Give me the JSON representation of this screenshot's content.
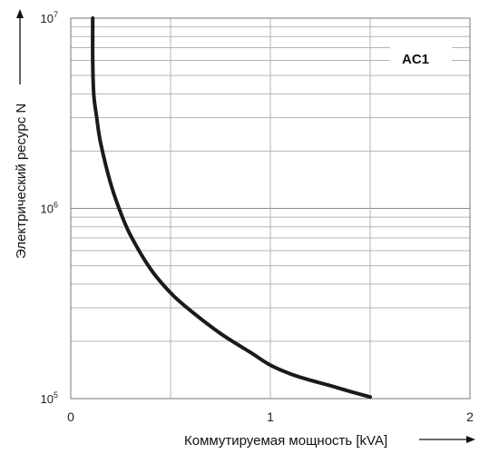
{
  "chart_data": {
    "type": "line",
    "xlabel": "Коммутируемая мощность [kVA]",
    "ylabel": "Электрический ресурс N",
    "annotation": "AC1",
    "x_scale": "linear",
    "y_scale": "log",
    "xlim": [
      0,
      2
    ],
    "ylim": [
      100000,
      10000000
    ],
    "x_ticks": [
      "0",
      "1",
      "2"
    ],
    "y_ticks": [
      {
        "base": "10",
        "exp": "5"
      },
      {
        "base": "10",
        "exp": "6"
      },
      {
        "base": "10",
        "exp": "7"
      }
    ],
    "grid": true,
    "series": [
      {
        "x": [
          0.11,
          0.11,
          0.115,
          0.13,
          0.15,
          0.2,
          0.25,
          0.3,
          0.4,
          0.5,
          0.6,
          0.75,
          0.9,
          1.0,
          1.1,
          1.2,
          1.3,
          1.4,
          1.5
        ],
        "y": [
          10000000,
          6000000,
          4000000,
          3000000,
          2200000,
          1350000,
          950000,
          720000,
          480000,
          360000,
          290000,
          220000,
          175000,
          150000,
          135000,
          125000,
          117000,
          109000,
          102000
        ]
      }
    ]
  }
}
